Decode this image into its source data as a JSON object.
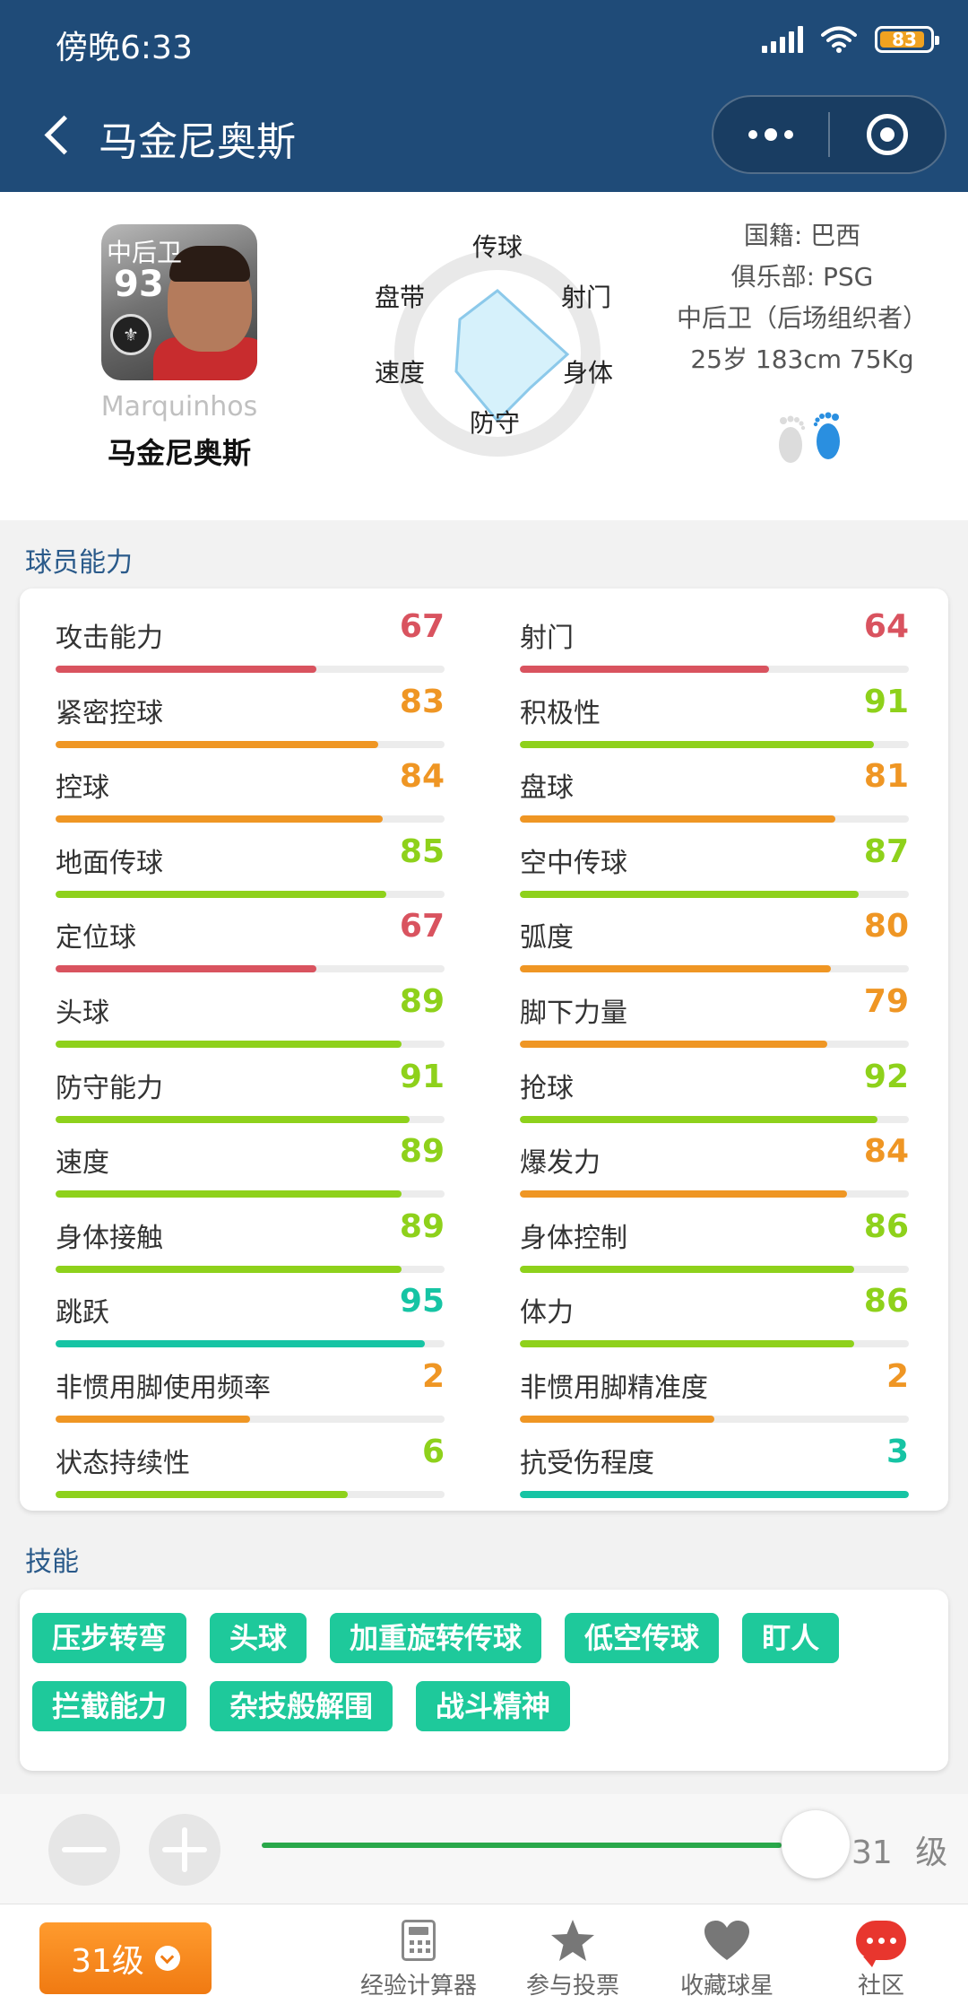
{
  "status_bar": {
    "time": "傍晚6:33",
    "battery": "83"
  },
  "nav": {
    "title": "马金尼奥斯"
  },
  "profile": {
    "card_position": "中后卫",
    "card_rating": "93",
    "name_en": "Marquinhos",
    "name_cn": "马金尼奥斯",
    "radar_labels": [
      "传球",
      "射门",
      "身体",
      "防守",
      "速度",
      "盘带"
    ],
    "info": {
      "nationality": "国籍: 巴西",
      "club": "俱乐部: PSG",
      "position": "中后卫（后场组织者）",
      "body": "25岁 183cm 75Kg"
    }
  },
  "ability": {
    "title": "球员能力",
    "left": [
      {
        "label": "攻击能力",
        "value": "67"
      },
      {
        "label": "紧密控球",
        "value": "83"
      },
      {
        "label": "控球",
        "value": "84"
      },
      {
        "label": "地面传球",
        "value": "85"
      },
      {
        "label": "定位球",
        "value": "67"
      },
      {
        "label": "头球",
        "value": "89"
      },
      {
        "label": "防守能力",
        "value": "91"
      },
      {
        "label": "速度",
        "value": "89"
      },
      {
        "label": "身体接触",
        "value": "89"
      },
      {
        "label": "跳跃",
        "value": "95"
      },
      {
        "label": "非惯用脚使用频率",
        "value": "2"
      },
      {
        "label": "状态持续性",
        "value": "6"
      }
    ],
    "right": [
      {
        "label": "射门",
        "value": "64"
      },
      {
        "label": "积极性",
        "value": "91"
      },
      {
        "label": "盘球",
        "value": "81"
      },
      {
        "label": "空中传球",
        "value": "87"
      },
      {
        "label": "弧度",
        "value": "80"
      },
      {
        "label": "脚下力量",
        "value": "79"
      },
      {
        "label": "抢球",
        "value": "92"
      },
      {
        "label": "爆发力",
        "value": "84"
      },
      {
        "label": "身体控制",
        "value": "86"
      },
      {
        "label": "体力",
        "value": "86"
      },
      {
        "label": "非惯用脚精准度",
        "value": "2"
      },
      {
        "label": "抗受伤程度",
        "value": "3"
      }
    ],
    "left_fill": [
      0.67,
      0.83,
      0.84,
      0.85,
      0.67,
      0.89,
      0.91,
      0.89,
      0.89,
      0.95,
      0.5,
      0.75
    ],
    "right_fill": [
      0.64,
      0.91,
      0.81,
      0.87,
      0.8,
      0.79,
      0.92,
      0.84,
      0.86,
      0.86,
      0.5,
      1.0
    ],
    "tier_colors": {
      "red": "#d9535f",
      "orange": "#ef9624",
      "green": "#8ed11b",
      "teal": "#16c4a4"
    },
    "left_tiers": [
      "red",
      "orange",
      "orange",
      "green",
      "red",
      "green",
      "green",
      "green",
      "green",
      "teal",
      "orange",
      "green"
    ],
    "right_tiers": [
      "red",
      "green",
      "orange",
      "green",
      "orange",
      "orange",
      "green",
      "orange",
      "green",
      "green",
      "orange",
      "teal"
    ]
  },
  "skills": {
    "title": "技能",
    "row1": [
      "压步转弯",
      "头球",
      "加重旋转传球",
      "低空传球",
      "盯人"
    ],
    "row2": [
      "拦截能力",
      "杂技般解围",
      "战斗精神"
    ]
  },
  "level_control": {
    "readout": "31 级",
    "progress": 0.95
  },
  "tabbar": {
    "level_button": "31级",
    "tabs": [
      {
        "label": "经验计算器",
        "icon": "calculator-icon"
      },
      {
        "label": "参与投票",
        "icon": "star-icon"
      },
      {
        "label": "收藏球星",
        "icon": "heart-icon"
      },
      {
        "label": "社区",
        "icon": "chat-bubble-icon"
      }
    ]
  }
}
